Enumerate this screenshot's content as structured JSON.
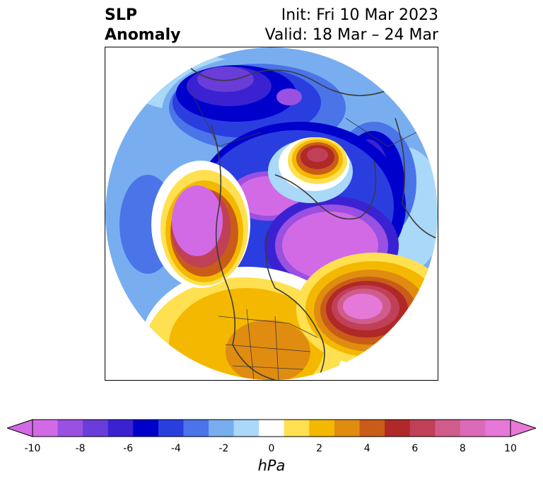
{
  "title": {
    "left_line1": "SLP",
    "left_line2": "Anomaly",
    "right_line1": "Init: Fri 10 Mar 2023",
    "right_line2": "Valid: 18 Mar – 24 Mar"
  },
  "colorbar": {
    "unit": "hPa",
    "ticks": [
      "-10",
      "-8",
      "-6",
      "-4",
      "-2",
      "0",
      "2",
      "4",
      "6",
      "8",
      "10"
    ],
    "colors": [
      "#d26ae6",
      "#9a50e0",
      "#6a3cd8",
      "#3a22d2",
      "#0000cc",
      "#2a3ee0",
      "#4a74e8",
      "#78aef0",
      "#aad8f8",
      "#ffffff",
      "#ffe050",
      "#f4b800",
      "#e08c10",
      "#c85c18",
      "#b02828",
      "#c04058",
      "#d05c8c",
      "#dc6ab8",
      "#e678d8"
    ],
    "extend_low_color": "#d26ae6",
    "extend_high_color": "#e678d8"
  }
}
